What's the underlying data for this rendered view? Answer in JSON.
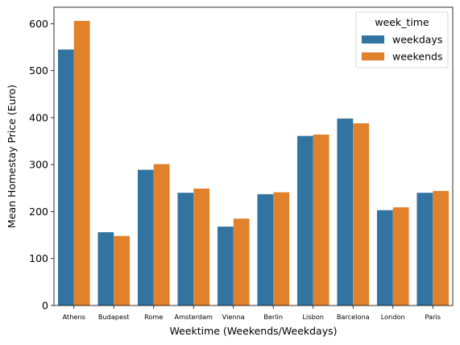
{
  "chart_data": {
    "type": "bar",
    "xlabel": "Weektime (Weekends/Weekdays)",
    "ylabel": "Mean Homestay Price (Euro)",
    "ylim": [
      0,
      635
    ],
    "yticks": [
      0,
      100,
      200,
      300,
      400,
      500,
      600
    ],
    "grid": false,
    "legend": {
      "title": "week_time",
      "placement": "top-right"
    },
    "categories": [
      "Athens",
      "Budapest",
      "Rome",
      "Amsterdam",
      "Vienna",
      "Berlin",
      "Lisbon",
      "Barcelona",
      "London",
      "Paris"
    ],
    "series": [
      {
        "name": "weekdays",
        "color": "#3274a1",
        "values": [
          545,
          156,
          289,
          240,
          168,
          237,
          361,
          398,
          203,
          240
        ]
      },
      {
        "name": "weekends",
        "color": "#e1812c",
        "values": [
          606,
          148,
          301,
          249,
          185,
          241,
          364,
          388,
          209,
          244
        ]
      }
    ]
  }
}
